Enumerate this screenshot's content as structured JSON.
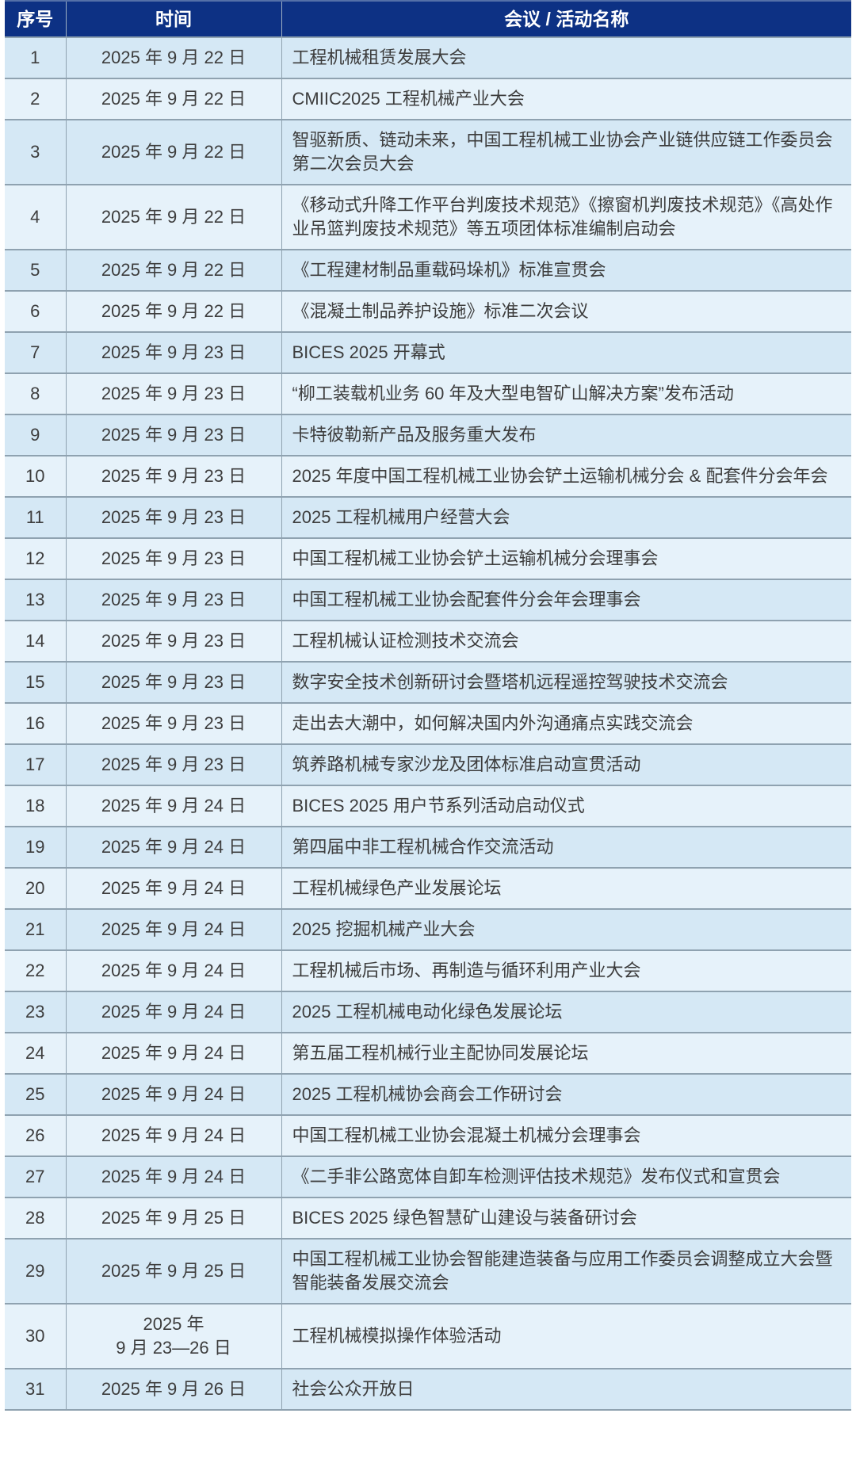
{
  "colors": {
    "header_bg": "#0d3184",
    "header_text": "#ffffff",
    "row_odd_bg": "#d5e8f5",
    "row_even_bg": "#e6f2fa",
    "border": "#8fa2b0",
    "body_text": "#3d3d3d"
  },
  "table": {
    "headers": {
      "index": "序号",
      "time": "时间",
      "name": "会议 / 活动名称"
    },
    "rows": [
      {
        "no": "1",
        "time": "2025 年 9 月 22 日",
        "name": "工程机械租赁发展大会"
      },
      {
        "no": "2",
        "time": "2025 年 9 月 22 日",
        "name": "CMIIC2025 工程机械产业大会"
      },
      {
        "no": "3",
        "time": "2025 年 9 月 22 日",
        "name": "智驱新质、链动未来，中国工程机械工业协会产业链供应链工作委员会第二次会员大会"
      },
      {
        "no": "4",
        "time": "2025 年 9 月 22 日",
        "name": "《移动式升降工作平台判废技术规范》《擦窗机判废技术规范》《高处作业吊篮判废技术规范》等五项团体标准编制启动会"
      },
      {
        "no": "5",
        "time": "2025 年 9 月 22 日",
        "name": "《工程建材制品重载码垛机》标准宣贯会"
      },
      {
        "no": "6",
        "time": "2025 年 9 月 22 日",
        "name": "《混凝土制品养护设施》标准二次会议"
      },
      {
        "no": "7",
        "time": "2025 年 9 月 23 日",
        "name": "BICES 2025 开幕式"
      },
      {
        "no": "8",
        "time": "2025 年 9 月 23 日",
        "name": "“柳工装载机业务 60 年及大型电智矿山解决方案”发布活动"
      },
      {
        "no": "9",
        "time": "2025 年 9 月 23 日",
        "name": "卡特彼勒新产品及服务重大发布"
      },
      {
        "no": "10",
        "time": "2025 年 9 月 23 日",
        "name": "2025 年度中国工程机械工业协会铲土运输机械分会 & 配套件分会年会"
      },
      {
        "no": "11",
        "time": "2025 年 9 月 23 日",
        "name": "2025 工程机械用户经营大会"
      },
      {
        "no": "12",
        "time": "2025 年 9 月 23 日",
        "name": "中国工程机械工业协会铲土运输机械分会理事会"
      },
      {
        "no": "13",
        "time": "2025 年 9 月 23 日",
        "name": "中国工程机械工业协会配套件分会年会理事会"
      },
      {
        "no": "14",
        "time": "2025 年 9 月 23 日",
        "name": "工程机械认证检测技术交流会"
      },
      {
        "no": "15",
        "time": "2025 年 9 月 23 日",
        "name": "数字安全技术创新研讨会暨塔机远程遥控驾驶技术交流会"
      },
      {
        "no": "16",
        "time": "2025 年 9 月 23 日",
        "name": "走出去大潮中，如何解决国内外沟通痛点实践交流会"
      },
      {
        "no": "17",
        "time": "2025 年 9 月 23 日",
        "name": "筑养路机械专家沙龙及团体标准启动宣贯活动"
      },
      {
        "no": "18",
        "time": "2025 年 9 月 24 日",
        "name": "BICES 2025 用户节系列活动启动仪式"
      },
      {
        "no": "19",
        "time": "2025 年 9 月 24 日",
        "name": "第四届中非工程机械合作交流活动"
      },
      {
        "no": "20",
        "time": "2025 年 9 月 24 日",
        "name": "工程机械绿色产业发展论坛"
      },
      {
        "no": "21",
        "time": "2025 年 9 月 24 日",
        "name": "2025 挖掘机械产业大会"
      },
      {
        "no": "22",
        "time": "2025 年 9 月 24 日",
        "name": "工程机械后市场、再制造与循环利用产业大会"
      },
      {
        "no": "23",
        "time": "2025 年 9 月 24 日",
        "name": "2025 工程机械电动化绿色发展论坛"
      },
      {
        "no": "24",
        "time": "2025 年 9 月 24 日",
        "name": "第五届工程机械行业主配协同发展论坛"
      },
      {
        "no": "25",
        "time": "2025 年 9 月 24 日",
        "name": "2025 工程机械协会商会工作研讨会"
      },
      {
        "no": "26",
        "time": "2025 年 9 月 24 日",
        "name": "中国工程机械工业协会混凝土机械分会理事会"
      },
      {
        "no": "27",
        "time": "2025 年 9 月 24 日",
        "name": "《二手非公路宽体自卸车检测评估技术规范》发布仪式和宣贯会"
      },
      {
        "no": "28",
        "time": "2025 年 9 月 25 日",
        "name": "BICES 2025 绿色智慧矿山建设与装备研讨会"
      },
      {
        "no": "29",
        "time": "2025 年 9 月 25 日",
        "name": "中国工程机械工业协会智能建造装备与应用工作委员会调整成立大会暨智能装备发展交流会"
      },
      {
        "no": "30",
        "time": "2025 年\n9 月 23—26 日",
        "name": "工程机械模拟操作体验活动"
      },
      {
        "no": "31",
        "time": "2025 年 9 月 26 日",
        "name": "社会公众开放日"
      }
    ]
  }
}
